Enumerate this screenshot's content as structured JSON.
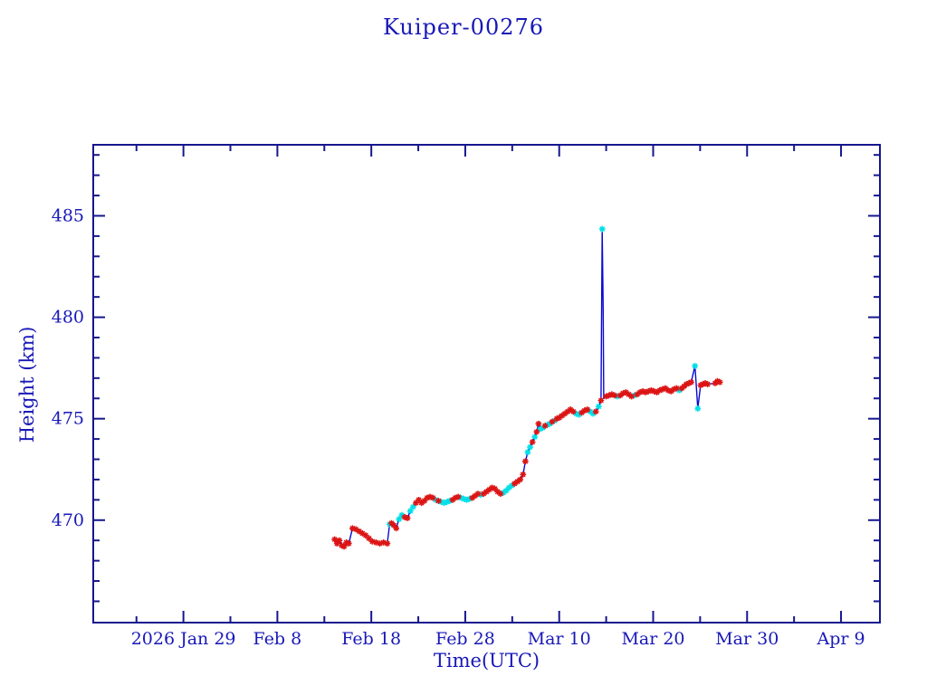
{
  "window": {
    "background": "#ffffff"
  },
  "chart_data": {
    "type": "line",
    "title": "Kuiper-00276",
    "xlabel": "Time(UTC)",
    "ylabel": "Height (km)",
    "legend": "none",
    "grid": false,
    "colors": {
      "text": "#1818B8",
      "frame": "#16168E",
      "line": "#0A0ACF",
      "red_marker": "#DC1414",
      "cyan_marker": "#00DFE8",
      "background": "#ffffff"
    },
    "x_axis": {
      "unit": "days since 2026-01-01 (Jan 29 = 28)",
      "range": [
        18.4,
        102.14
      ],
      "major_ticks": [
        {
          "v": 28,
          "label": "2026 Jan 29"
        },
        {
          "v": 38,
          "label": "Feb  8"
        },
        {
          "v": 48,
          "label": "Feb 18"
        },
        {
          "v": 58,
          "label": "Feb 28"
        },
        {
          "v": 68,
          "label": "Mar 10"
        },
        {
          "v": 78,
          "label": "Mar 20"
        },
        {
          "v": 88,
          "label": "Mar 30"
        },
        {
          "v": 98,
          "label": "Apr  9"
        }
      ],
      "minor_ticks": [
        23,
        33,
        43,
        53,
        63,
        73,
        83,
        93
      ]
    },
    "y_axis": {
      "unit": "km",
      "range": [
        464.95,
        488.5
      ],
      "major_ticks": [
        {
          "v": 470,
          "label": "470"
        },
        {
          "v": 475,
          "label": "475"
        },
        {
          "v": 480,
          "label": "480"
        },
        {
          "v": 485,
          "label": "485"
        }
      ],
      "minor_ticks": [
        466,
        467,
        468,
        469,
        471,
        472,
        473,
        474,
        476,
        477,
        478,
        479,
        481,
        482,
        483,
        484,
        486,
        487,
        488
      ]
    },
    "marker_key": {
      "r": "red-asterisk",
      "c": "cyan-asterisk",
      "n": "no-marker"
    },
    "series": [
      {
        "name": "height-km",
        "points": [
          [
            44.1,
            469.05,
            "r"
          ],
          [
            44.35,
            468.85,
            "r"
          ],
          [
            44.6,
            469.0,
            "r"
          ],
          [
            44.85,
            468.75,
            "r"
          ],
          [
            45.1,
            468.7,
            "r"
          ],
          [
            45.35,
            468.9,
            "r"
          ],
          [
            45.6,
            468.85,
            "r"
          ],
          [
            46.0,
            469.6,
            "r"
          ],
          [
            46.35,
            469.55,
            "r"
          ],
          [
            46.7,
            469.45,
            "r"
          ],
          [
            47.05,
            469.35,
            "r"
          ],
          [
            47.4,
            469.25,
            "r"
          ],
          [
            47.75,
            469.1,
            "r"
          ],
          [
            48.1,
            468.95,
            "r"
          ],
          [
            48.5,
            468.9,
            "r"
          ],
          [
            48.9,
            468.85,
            "r"
          ],
          [
            49.3,
            468.9,
            "r"
          ],
          [
            49.7,
            468.85,
            "r"
          ],
          [
            49.95,
            469.8,
            "c"
          ],
          [
            50.15,
            469.85,
            "r"
          ],
          [
            50.4,
            469.75,
            "r"
          ],
          [
            50.65,
            469.6,
            "r"
          ],
          [
            50.95,
            470.05,
            "c"
          ],
          [
            51.25,
            470.25,
            "c"
          ],
          [
            51.55,
            470.15,
            "r"
          ],
          [
            51.85,
            470.1,
            "r"
          ],
          [
            52.15,
            470.45,
            "c"
          ],
          [
            52.45,
            470.65,
            "c"
          ],
          [
            52.75,
            470.85,
            "r"
          ],
          [
            53.05,
            471.0,
            "r"
          ],
          [
            53.35,
            470.85,
            "r"
          ],
          [
            53.65,
            470.95,
            "r"
          ],
          [
            53.95,
            471.1,
            "r"
          ],
          [
            54.25,
            471.15,
            "r"
          ],
          [
            54.55,
            471.1,
            "r"
          ],
          [
            54.85,
            471.0,
            "c"
          ],
          [
            55.15,
            470.95,
            "r"
          ],
          [
            55.45,
            470.9,
            "c"
          ],
          [
            55.75,
            470.85,
            "c"
          ],
          [
            56.05,
            470.9,
            "c"
          ],
          [
            56.35,
            470.95,
            "c"
          ],
          [
            56.65,
            471.0,
            "r"
          ],
          [
            56.95,
            471.1,
            "r"
          ],
          [
            57.25,
            471.15,
            "r"
          ],
          [
            57.55,
            471.1,
            "c"
          ],
          [
            57.85,
            471.05,
            "c"
          ],
          [
            58.15,
            471.0,
            "c"
          ],
          [
            58.45,
            471.05,
            "c"
          ],
          [
            58.75,
            471.1,
            "r"
          ],
          [
            59.05,
            471.2,
            "r"
          ],
          [
            59.35,
            471.3,
            "r"
          ],
          [
            59.65,
            471.25,
            "c"
          ],
          [
            59.95,
            471.3,
            "r"
          ],
          [
            60.25,
            471.4,
            "r"
          ],
          [
            60.55,
            471.5,
            "r"
          ],
          [
            60.85,
            471.6,
            "r"
          ],
          [
            61.15,
            471.55,
            "r"
          ],
          [
            61.45,
            471.4,
            "r"
          ],
          [
            61.75,
            471.3,
            "r"
          ],
          [
            62.05,
            471.35,
            "c"
          ],
          [
            62.35,
            471.45,
            "c"
          ],
          [
            62.65,
            471.6,
            "c"
          ],
          [
            62.95,
            471.7,
            "c"
          ],
          [
            63.25,
            471.8,
            "r"
          ],
          [
            63.55,
            471.9,
            "r"
          ],
          [
            63.85,
            472.0,
            "r"
          ],
          [
            64.15,
            472.25,
            "r"
          ],
          [
            64.4,
            472.9,
            "r"
          ],
          [
            64.65,
            473.35,
            "c"
          ],
          [
            64.9,
            473.6,
            "c"
          ],
          [
            65.15,
            473.85,
            "r"
          ],
          [
            65.4,
            474.1,
            "c"
          ],
          [
            65.6,
            474.35,
            "r"
          ],
          [
            65.8,
            474.75,
            "r"
          ],
          [
            66.0,
            474.5,
            "c"
          ],
          [
            66.25,
            474.55,
            "c"
          ],
          [
            66.5,
            474.65,
            "r"
          ],
          [
            66.75,
            474.7,
            "c"
          ],
          [
            67.0,
            474.75,
            "c"
          ],
          [
            67.25,
            474.85,
            "r"
          ],
          [
            67.5,
            474.9,
            "c"
          ],
          [
            67.75,
            475.0,
            "r"
          ],
          [
            68.0,
            475.05,
            "r"
          ],
          [
            68.3,
            475.15,
            "r"
          ],
          [
            68.6,
            475.25,
            "r"
          ],
          [
            68.9,
            475.35,
            "r"
          ],
          [
            69.2,
            475.45,
            "r"
          ],
          [
            69.5,
            475.35,
            "r"
          ],
          [
            69.8,
            475.25,
            "c"
          ],
          [
            70.1,
            475.2,
            "c"
          ],
          [
            70.4,
            475.3,
            "r"
          ],
          [
            70.7,
            475.4,
            "r"
          ],
          [
            71.0,
            475.45,
            "r"
          ],
          [
            71.3,
            475.35,
            "c"
          ],
          [
            71.6,
            475.25,
            "c"
          ],
          [
            71.9,
            475.35,
            "r"
          ],
          [
            72.2,
            475.6,
            "c"
          ],
          [
            72.45,
            475.9,
            "r"
          ],
          [
            72.58,
            484.35,
            "c"
          ],
          [
            72.68,
            480.35,
            "n"
          ],
          [
            72.74,
            476.0,
            "n"
          ],
          [
            73.0,
            476.1,
            "r"
          ],
          [
            73.3,
            476.15,
            "r"
          ],
          [
            73.6,
            476.2,
            "r"
          ],
          [
            73.9,
            476.15,
            "r"
          ],
          [
            74.2,
            476.1,
            "c"
          ],
          [
            74.5,
            476.15,
            "r"
          ],
          [
            74.8,
            476.25,
            "r"
          ],
          [
            75.1,
            476.3,
            "r"
          ],
          [
            75.4,
            476.2,
            "r"
          ],
          [
            75.7,
            476.1,
            "r"
          ],
          [
            76.0,
            476.15,
            "c"
          ],
          [
            76.3,
            476.2,
            "r"
          ],
          [
            76.6,
            476.3,
            "r"
          ],
          [
            76.9,
            476.35,
            "r"
          ],
          [
            77.2,
            476.3,
            "r"
          ],
          [
            77.5,
            476.35,
            "r"
          ],
          [
            77.8,
            476.4,
            "r"
          ],
          [
            78.1,
            476.35,
            "r"
          ],
          [
            78.4,
            476.3,
            "r"
          ],
          [
            78.7,
            476.4,
            "r"
          ],
          [
            79.0,
            476.45,
            "r"
          ],
          [
            79.3,
            476.5,
            "r"
          ],
          [
            79.6,
            476.4,
            "r"
          ],
          [
            79.9,
            476.35,
            "r"
          ],
          [
            80.2,
            476.45,
            "r"
          ],
          [
            80.5,
            476.5,
            "r"
          ],
          [
            80.8,
            476.4,
            "c"
          ],
          [
            81.05,
            476.5,
            "r"
          ],
          [
            81.3,
            476.6,
            "r"
          ],
          [
            81.55,
            476.7,
            "r"
          ],
          [
            81.8,
            476.75,
            "r"
          ],
          [
            82.05,
            476.8,
            "r"
          ],
          [
            82.45,
            477.6,
            "c"
          ],
          [
            82.75,
            475.5,
            "c"
          ],
          [
            83.05,
            476.65,
            "r"
          ],
          [
            83.3,
            476.7,
            "r"
          ],
          [
            83.55,
            476.75,
            "r"
          ],
          [
            83.8,
            476.7,
            "r"
          ],
          [
            84.6,
            476.75,
            "r"
          ],
          [
            84.85,
            476.85,
            "r"
          ],
          [
            85.1,
            476.8,
            "r"
          ]
        ]
      }
    ]
  }
}
